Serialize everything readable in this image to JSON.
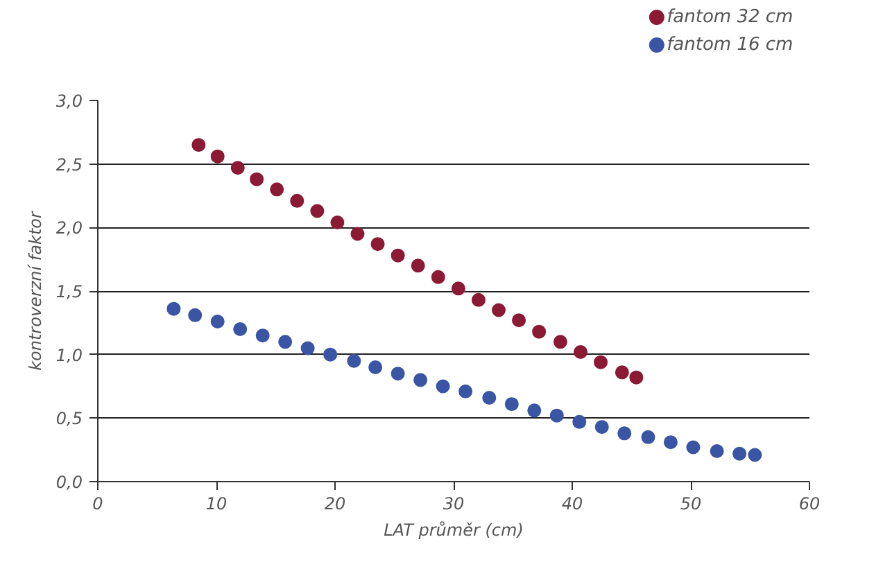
{
  "chart_data": {
    "type": "scatter",
    "xlabel": "LAT průměr (cm)",
    "ylabel": "kontroverzní faktor",
    "xlim": [
      0,
      60
    ],
    "xticks": [
      0,
      10,
      20,
      30,
      40,
      50,
      60
    ],
    "ylim": [
      0,
      3
    ],
    "yticks": [
      {
        "value": 0,
        "label": "0,0"
      },
      {
        "value": 0.5,
        "label": "0,5"
      },
      {
        "value": 1,
        "label": "1,0"
      },
      {
        "value": 1.5,
        "label": "1,5"
      },
      {
        "value": 2,
        "label": "2,0"
      },
      {
        "value": 2.5,
        "label": "2,5"
      },
      {
        "value": 3,
        "label": "3,0"
      }
    ],
    "grid": "y",
    "legend": "top right",
    "marker": "circle",
    "series": [
      {
        "name": "fantom 32 cm",
        "color": "#8b1a35",
        "x": [
          8.5,
          10.1,
          11.8,
          13.4,
          15.1,
          16.8,
          18.5,
          20.2,
          21.9,
          23.6,
          25.3,
          27.0,
          28.7,
          30.4,
          32.1,
          33.8,
          35.5,
          37.2,
          39.0,
          40.7,
          42.4,
          44.2,
          45.4
        ],
        "values": [
          2.65,
          2.56,
          2.47,
          2.38,
          2.3,
          2.21,
          2.13,
          2.04,
          1.95,
          1.87,
          1.78,
          1.7,
          1.61,
          1.52,
          1.43,
          1.35,
          1.27,
          1.18,
          1.1,
          1.02,
          0.94,
          0.86,
          0.82
        ]
      },
      {
        "name": "fantom 16 cm",
        "color": "#3a55a4",
        "x": [
          6.4,
          8.2,
          10.1,
          12.0,
          13.9,
          15.8,
          17.7,
          19.6,
          21.6,
          23.4,
          25.3,
          27.2,
          29.1,
          31.0,
          33.0,
          34.9,
          36.8,
          38.7,
          40.6,
          42.5,
          44.4,
          46.4,
          48.3,
          50.2,
          52.2,
          54.1,
          55.4
        ],
        "values": [
          1.36,
          1.31,
          1.26,
          1.2,
          1.15,
          1.1,
          1.05,
          1.0,
          0.95,
          0.9,
          0.85,
          0.8,
          0.75,
          0.71,
          0.66,
          0.61,
          0.56,
          0.52,
          0.47,
          0.43,
          0.38,
          0.35,
          0.31,
          0.27,
          0.24,
          0.22,
          0.21
        ]
      }
    ]
  }
}
